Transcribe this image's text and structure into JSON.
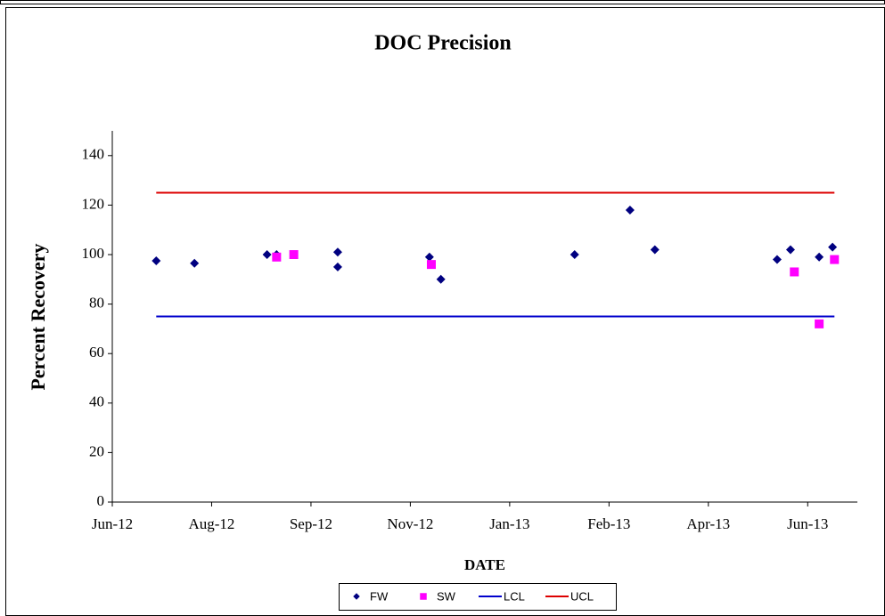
{
  "chart_data": {
    "type": "scatter",
    "title": "DOC Precision",
    "xlabel": "DATE",
    "ylabel": "Percent Recovery",
    "xlim": [
      0,
      390
    ],
    "xticks": [
      {
        "value": 0,
        "label": "Jun-12"
      },
      {
        "value": 52,
        "label": "Aug-12"
      },
      {
        "value": 104,
        "label": "Sep-12"
      },
      {
        "value": 156,
        "label": "Nov-12"
      },
      {
        "value": 208,
        "label": "Jan-13"
      },
      {
        "value": 260,
        "label": "Feb-13"
      },
      {
        "value": 312,
        "label": "Apr-13"
      },
      {
        "value": 364,
        "label": "Jun-13"
      }
    ],
    "ylim": [
      0,
      150
    ],
    "yticks": [
      0,
      20,
      40,
      60,
      80,
      100,
      120,
      140
    ],
    "series": [
      {
        "name": "FW",
        "color": "#000080",
        "marker": "diamond",
        "x": [
          23,
          43,
          81,
          86,
          118,
          118,
          166,
          172,
          242,
          271,
          284,
          348,
          355,
          370,
          377
        ],
        "values": [
          97.5,
          96.5,
          100,
          100,
          101,
          95,
          99,
          90,
          100,
          118,
          102,
          98,
          102,
          99,
          103
        ]
      },
      {
        "name": "SW",
        "color": "#ff00ff",
        "marker": "square",
        "x": [
          86,
          95,
          167,
          357,
          370,
          378
        ],
        "values": [
          99,
          100,
          96,
          93,
          72,
          98
        ]
      },
      {
        "name": "LCL",
        "color": "#0000cc",
        "marker": "line",
        "x": [
          23,
          378
        ],
        "values": [
          75,
          75
        ]
      },
      {
        "name": "UCL",
        "color": "#dd0000",
        "marker": "line",
        "x": [
          23,
          378
        ],
        "values": [
          125,
          125
        ]
      }
    ]
  }
}
